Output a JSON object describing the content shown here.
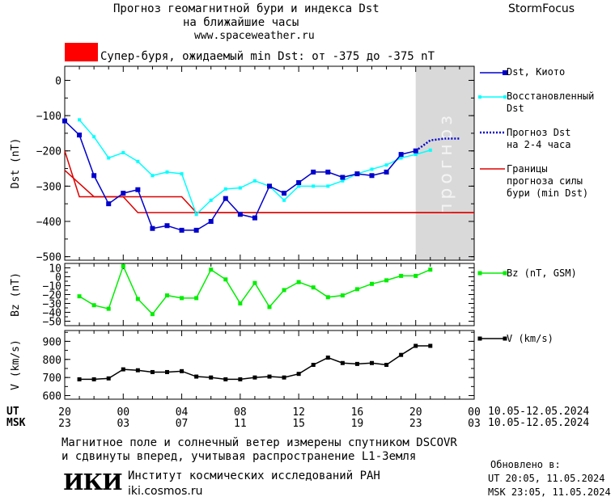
{
  "header": {
    "title_line1": "Прогноз геомагнитной бури и индекса Dst",
    "title_line2": "на ближайшие часы",
    "site": "www.spaceweather.ru",
    "brand": "StormFocus"
  },
  "alert": {
    "color": "#ff0000",
    "text": "Супер-буря, ожидаемый min Dst: от -375 до -375 nT"
  },
  "legend": {
    "dst_kyoto": "Dst, Киото",
    "dst_restored_1": "Восстановленный",
    "dst_restored_2": "Dst",
    "forecast_1": "Прогноз Dst",
    "forecast_2": "на 2-4 часа",
    "bounds_1": "Границы",
    "bounds_2": "прогноза силы",
    "bounds_3": "бури (min Dst)",
    "bz": "Bz (nT, GSM)",
    "v": "V (km/s)"
  },
  "forecast_zone_label": "прогноз",
  "time_axis": {
    "ut_label": "UT",
    "msk_label": "MSK",
    "ut_ticks": [
      "20",
      "00",
      "04",
      "08",
      "12",
      "16",
      "20",
      "00"
    ],
    "msk_ticks": [
      "23",
      "03",
      "07",
      "11",
      "15",
      "19",
      "23",
      "03"
    ],
    "ut_range": "10.05-12.05.2024",
    "msk_range": "10.05-12.05.2024"
  },
  "footer": {
    "note_line1": "Магнитное поле и солнечный ветер измерены спутником DSCOVR",
    "note_line2": "и сдвинуты вперед, учитывая распространение L1-Земля",
    "logo_text": "ИКИ",
    "institute": "Институт космических исследований РАН",
    "institute_url": "iki.cosmos.ru",
    "updated_label": "Обновлено в:",
    "updated_ut": "UT  20:05, 11.05.2024",
    "updated_msk": "MSK 23:05, 11.05.2024"
  },
  "colors": {
    "dst_kyoto": "#0000cc",
    "dst_restored": "#00ffff",
    "forecast": "#0000cc",
    "bounds": "#dd0000",
    "bz": "#00ee00",
    "v": "#000000",
    "forecast_zone": "#d9d9d9"
  },
  "chart_data": [
    {
      "type": "line",
      "x_unit": "hours UT from 20:00 10.05.2024",
      "xlim": [
        0,
        28
      ],
      "forecast_zone_x": [
        24,
        28
      ],
      "ylabel": "Dst (nT)",
      "ylim": [
        -510,
        40
      ],
      "yticks": [
        0,
        -100,
        -200,
        -300,
        -400,
        -500
      ],
      "series": [
        {
          "name": "Dst, Киото",
          "x": [
            0,
            1,
            2,
            3,
            4,
            5,
            6,
            7,
            8,
            9,
            10,
            11,
            12,
            13,
            14,
            15,
            16,
            17,
            18,
            19,
            20,
            21,
            22,
            23,
            24
          ],
          "y": [
            -115,
            -155,
            -270,
            -350,
            -320,
            -310,
            -420,
            -412,
            -425,
            -425,
            -400,
            -335,
            -380,
            -390,
            -300,
            -320,
            -290,
            -260,
            -260,
            -275,
            -265,
            -270,
            -260,
            -210,
            -200
          ]
        },
        {
          "name": "Восстановленный Dst",
          "x": [
            1,
            2,
            3,
            4,
            5,
            6,
            7,
            8,
            9,
            10,
            11,
            12,
            13,
            14,
            15,
            16,
            17,
            18,
            19,
            20,
            21,
            22,
            23,
            24,
            25
          ],
          "y": [
            -112,
            -160,
            -220,
            -205,
            -230,
            -270,
            -260,
            -265,
            -380,
            -340,
            -308,
            -305,
            -285,
            -300,
            -340,
            -300,
            -300,
            -300,
            -285,
            -265,
            -252,
            -240,
            -220,
            -210,
            -198
          ]
        },
        {
          "name": "Прогноз Dst на 2-4 часа",
          "x": [
            24,
            24.5,
            25,
            26,
            27
          ],
          "y": [
            -200,
            -185,
            -170,
            -165,
            -165
          ]
        },
        {
          "name": "Границы прогноза силы бури (min Dst)",
          "x": [
            0,
            1,
            2,
            8,
            9,
            28
          ],
          "y": [
            -200,
            -330,
            -330,
            -330,
            -375,
            -375
          ]
        },
        {
          "name": "Границы прогноза силы бури (min Dst)",
          "x": [
            0,
            2,
            3,
            4,
            5,
            28
          ],
          "y": [
            -255,
            -330,
            -330,
            -330,
            -375,
            -375
          ]
        }
      ]
    },
    {
      "type": "line",
      "xlim": [
        0,
        28
      ],
      "ylabel": "Bz (nT)",
      "ylim": [
        -55,
        15
      ],
      "yticks": [
        10,
        0,
        -10,
        -20,
        -30,
        -40,
        -50
      ],
      "series": [
        {
          "name": "Bz (nT, GSM)",
          "x": [
            1,
            2,
            3,
            4,
            5,
            6,
            7,
            8,
            9,
            10,
            11,
            12,
            13,
            14,
            15,
            16,
            17,
            18,
            19,
            20,
            21,
            22,
            23,
            24,
            25
          ],
          "y": [
            -22,
            -32,
            -36,
            12,
            -25,
            -42,
            -21,
            -24,
            -24,
            8,
            -3,
            -30,
            -7,
            -34,
            -15,
            -6,
            -12,
            -23,
            -21,
            -14,
            -8,
            -4,
            1,
            1,
            8
          ]
        }
      ]
    },
    {
      "type": "line",
      "xlim": [
        0,
        28
      ],
      "ylabel": "V (km/s)",
      "ylim": [
        580,
        960
      ],
      "yticks": [
        600,
        700,
        800,
        900
      ],
      "series": [
        {
          "name": "V (km/s)",
          "x": [
            1,
            2,
            3,
            4,
            5,
            6,
            7,
            8,
            9,
            10,
            11,
            12,
            13,
            14,
            15,
            16,
            17,
            18,
            19,
            20,
            21,
            22,
            23,
            24,
            25
          ],
          "y": [
            690,
            690,
            695,
            745,
            740,
            730,
            730,
            735,
            705,
            700,
            690,
            690,
            700,
            705,
            700,
            720,
            770,
            810,
            780,
            775,
            780,
            770,
            825,
            875,
            875
          ]
        }
      ]
    }
  ]
}
